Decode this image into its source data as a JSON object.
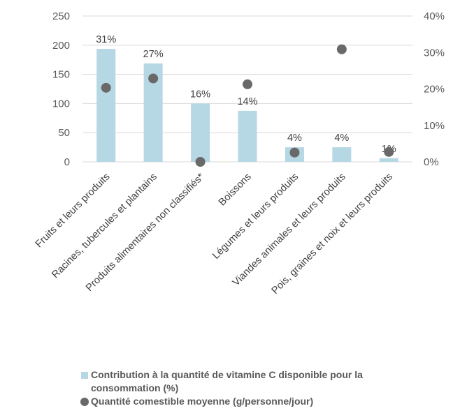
{
  "chart_data": {
    "type": "bar",
    "categories": [
      "Fruits et leurs produits",
      "Racines, tubercules et plantains",
      "Produits alimentaires non classifiés*",
      "Boissons",
      "Légumes et leurs produits",
      "Viandes animales et leurs produits",
      "Pois, graines et noix et leurs produits"
    ],
    "series": [
      {
        "name": "Contribution à la quantité de vitamine C disponible pour la consommation (%)",
        "type": "bar",
        "axis": "right",
        "values": [
          31,
          27,
          16,
          14,
          4,
          4,
          1
        ],
        "data_labels": [
          "31%",
          "27%",
          "16%",
          "14%",
          "4%",
          "4%",
          "1%"
        ],
        "color": "#b6d7e4"
      },
      {
        "name": "Quantité comestible moyenne (g/personne/jour)",
        "type": "scatter",
        "axis": "left",
        "values": [
          127,
          143,
          0,
          133,
          16,
          193,
          17
        ],
        "color": "#696969"
      }
    ],
    "left_axis": {
      "min": 0,
      "max": 250,
      "ticks": [
        0,
        50,
        100,
        150,
        200,
        250
      ]
    },
    "right_axis": {
      "min": 0,
      "max": 40,
      "ticks": [
        "0%",
        "10%",
        "20%",
        "30%",
        "40%"
      ]
    },
    "grid": true,
    "legend_position": "bottom"
  }
}
